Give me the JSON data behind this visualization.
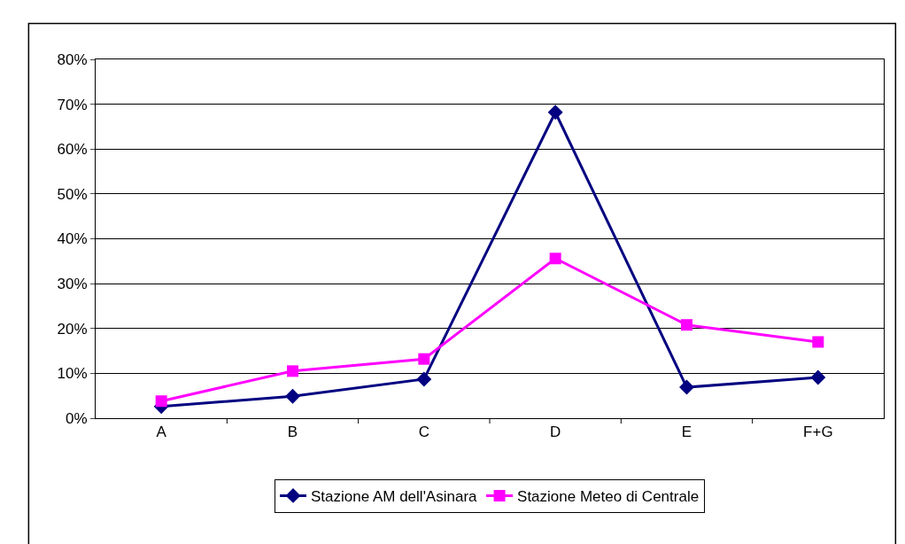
{
  "chart_data": {
    "type": "line",
    "categories": [
      "A",
      "B",
      "C",
      "D",
      "E",
      "F+G"
    ],
    "series": [
      {
        "name": "Stazione AM dell'Asinara",
        "color": "#000080",
        "marker": "diamond",
        "values": [
          2.6,
          4.9,
          8.7,
          68.2,
          6.9,
          9.1
        ]
      },
      {
        "name": "Stazione Meteo di Centrale",
        "color": "#ff00ff",
        "marker": "square",
        "values": [
          3.8,
          10.5,
          13.2,
          35.6,
          20.8,
          17.0
        ]
      }
    ],
    "ylim": [
      0,
      80
    ],
    "yticks": [
      {
        "value": 0,
        "label": "0%"
      },
      {
        "value": 10,
        "label": "10%"
      },
      {
        "value": 20,
        "label": "20%"
      },
      {
        "value": 30,
        "label": "30%"
      },
      {
        "value": 40,
        "label": "40%"
      },
      {
        "value": 50,
        "label": "50%"
      },
      {
        "value": 60,
        "label": "60%"
      },
      {
        "value": 70,
        "label": "70%"
      },
      {
        "value": 80,
        "label": "80%"
      }
    ],
    "grid": "y",
    "legend": "bottom",
    "line_style": "solid"
  }
}
